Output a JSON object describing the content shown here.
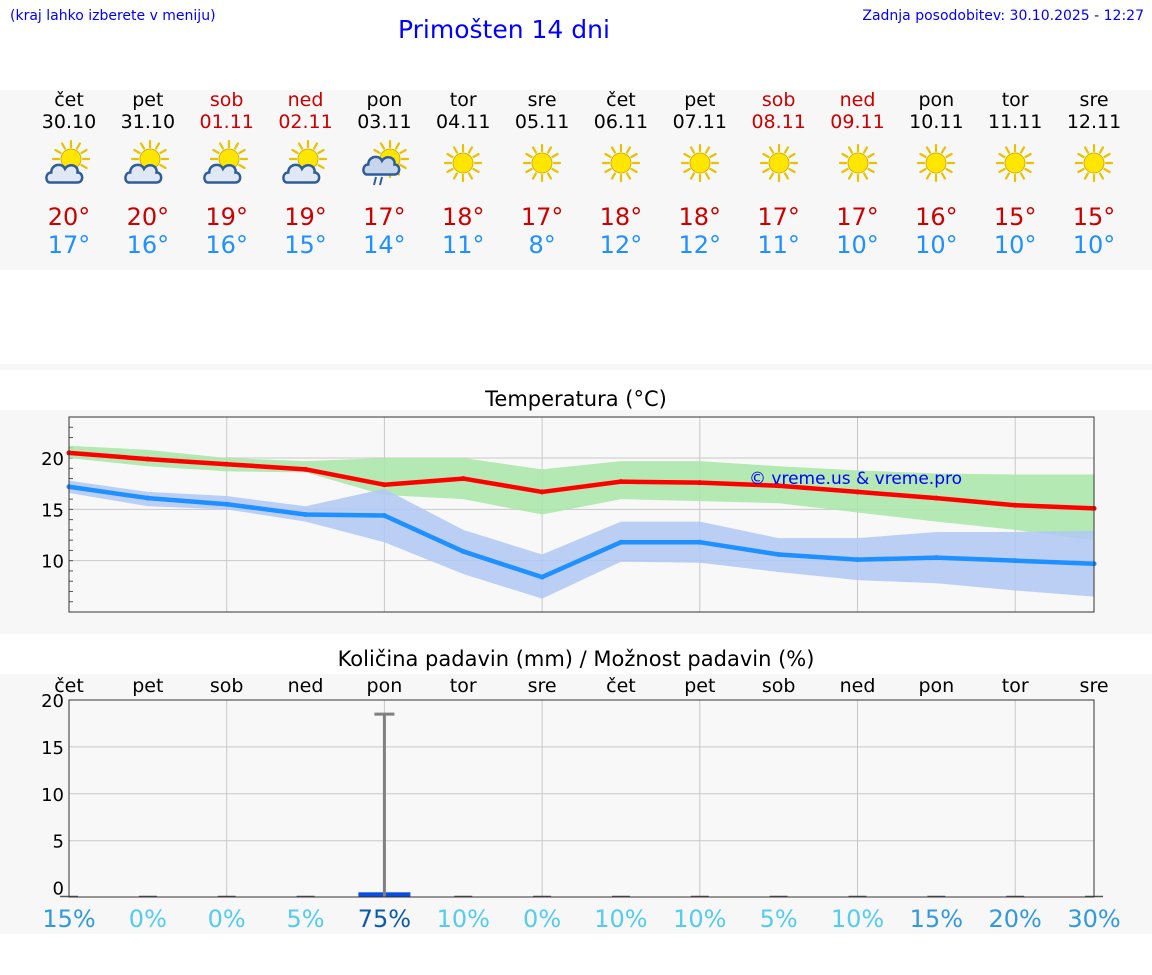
{
  "header": {
    "note": "(kraj lahko izberete v meniju)",
    "title": "Primošten 14 dni",
    "updated": "Zadnja posodobitev: 30.10.2025 - 12:27"
  },
  "days": [
    {
      "name": "čet",
      "date": "30.10",
      "weekend": false,
      "icon": "partly-cloudy-icon",
      "tmax": "20°",
      "tmin": "17°"
    },
    {
      "name": "pet",
      "date": "31.10",
      "weekend": false,
      "icon": "partly-cloudy-icon",
      "tmax": "20°",
      "tmin": "16°"
    },
    {
      "name": "sob",
      "date": "01.11",
      "weekend": true,
      "icon": "partly-cloudy-icon",
      "tmax": "19°",
      "tmin": "16°"
    },
    {
      "name": "ned",
      "date": "02.11",
      "weekend": true,
      "icon": "partly-cloudy-icon",
      "tmax": "19°",
      "tmin": "15°"
    },
    {
      "name": "pon",
      "date": "03.11",
      "weekend": false,
      "icon": "sun-cloud-rain-icon",
      "tmax": "17°",
      "tmin": "14°"
    },
    {
      "name": "tor",
      "date": "04.11",
      "weekend": false,
      "icon": "sun-icon",
      "tmax": "18°",
      "tmin": "11°"
    },
    {
      "name": "sre",
      "date": "05.11",
      "weekend": false,
      "icon": "sun-icon",
      "tmax": "17°",
      "tmin": "8°"
    },
    {
      "name": "čet",
      "date": "06.11",
      "weekend": false,
      "icon": "sun-icon",
      "tmax": "18°",
      "tmin": "12°"
    },
    {
      "name": "pet",
      "date": "07.11",
      "weekend": false,
      "icon": "sun-icon",
      "tmax": "18°",
      "tmin": "12°"
    },
    {
      "name": "sob",
      "date": "08.11",
      "weekend": true,
      "icon": "sun-icon",
      "tmax": "17°",
      "tmin": "11°"
    },
    {
      "name": "ned",
      "date": "09.11",
      "weekend": true,
      "icon": "sun-icon",
      "tmax": "17°",
      "tmin": "10°"
    },
    {
      "name": "pon",
      "date": "10.11",
      "weekend": false,
      "icon": "sun-icon",
      "tmax": "16°",
      "tmin": "10°"
    },
    {
      "name": "tor",
      "date": "11.11",
      "weekend": false,
      "icon": "sun-icon",
      "tmax": "15°",
      "tmin": "10°"
    },
    {
      "name": "sre",
      "date": "12.11",
      "weekend": false,
      "icon": "sun-icon",
      "tmax": "15°",
      "tmin": "10°"
    }
  ],
  "colors": {
    "max_line": "#ff0000",
    "min_line": "#1e90ff",
    "max_band": "#a8e6a8",
    "min_band": "#b0c8f5",
    "header_text": "#0000ff",
    "weekend": "#cc0000"
  },
  "chart_data": [
    {
      "type": "line",
      "title": "Temperatura (°C)",
      "watermark": "© vreme.us & vreme.pro",
      "x": [
        0,
        1,
        2,
        3,
        4,
        5,
        6,
        7,
        8,
        9,
        10,
        11,
        12,
        13
      ],
      "ylim": [
        5,
        24
      ],
      "yticks": [
        10,
        15,
        20
      ],
      "grid": true,
      "series": [
        {
          "name": "max",
          "values": [
            20.5,
            19.9,
            19.4,
            18.9,
            17.4,
            18.0,
            16.7,
            17.7,
            17.6,
            17.3,
            16.7,
            16.1,
            15.4,
            15.1
          ]
        },
        {
          "name": "min",
          "values": [
            17.2,
            16.1,
            15.5,
            14.5,
            14.4,
            10.9,
            8.4,
            11.8,
            11.8,
            10.6,
            10.1,
            10.3,
            10.0,
            9.7
          ]
        }
      ],
      "bands": [
        {
          "name": "max-range",
          "low": [
            20.0,
            19.2,
            18.7,
            18.6,
            16.4,
            16.0,
            14.5,
            16.0,
            15.8,
            15.6,
            14.7,
            13.8,
            13.0,
            12.0
          ],
          "high": [
            21.2,
            20.8,
            20.0,
            19.7,
            20.0,
            20.0,
            18.9,
            19.7,
            19.7,
            19.2,
            18.8,
            18.5,
            18.4,
            18.4
          ]
        },
        {
          "name": "min-range",
          "low": [
            16.6,
            15.3,
            15.0,
            13.8,
            11.8,
            8.7,
            6.3,
            9.9,
            9.8,
            8.9,
            8.1,
            7.8,
            7.1,
            6.5
          ],
          "high": [
            17.8,
            16.7,
            16.3,
            15.3,
            17.0,
            13.0,
            10.6,
            13.8,
            13.8,
            12.2,
            12.2,
            12.8,
            12.8,
            12.9
          ]
        }
      ]
    },
    {
      "type": "bar",
      "title": "Količina padavin (mm) / Možnost padavin (%)",
      "categories": [
        "čet",
        "pet",
        "sob",
        "ned",
        "pon",
        "tor",
        "sre",
        "čet",
        "pet",
        "sob",
        "ned",
        "pon",
        "tor",
        "sre"
      ],
      "values": [
        0,
        0,
        0,
        0,
        0.5,
        0,
        0,
        0,
        0,
        0,
        0,
        0,
        0,
        0
      ],
      "error_max": [
        0,
        0,
        0,
        0,
        18.5,
        0,
        0,
        0,
        0,
        0,
        0,
        0,
        0,
        0
      ],
      "chance": [
        "15%",
        "0%",
        "0%",
        "5%",
        "75%",
        "10%",
        "0%",
        "10%",
        "10%",
        "5%",
        "10%",
        "15%",
        "20%",
        "30%"
      ],
      "chance_values": [
        15,
        0,
        0,
        5,
        75,
        10,
        0,
        10,
        10,
        5,
        10,
        15,
        20,
        30
      ],
      "ylim": [
        -1,
        20
      ],
      "yticks": [
        0,
        5,
        10,
        15,
        20
      ],
      "grid": true
    }
  ]
}
